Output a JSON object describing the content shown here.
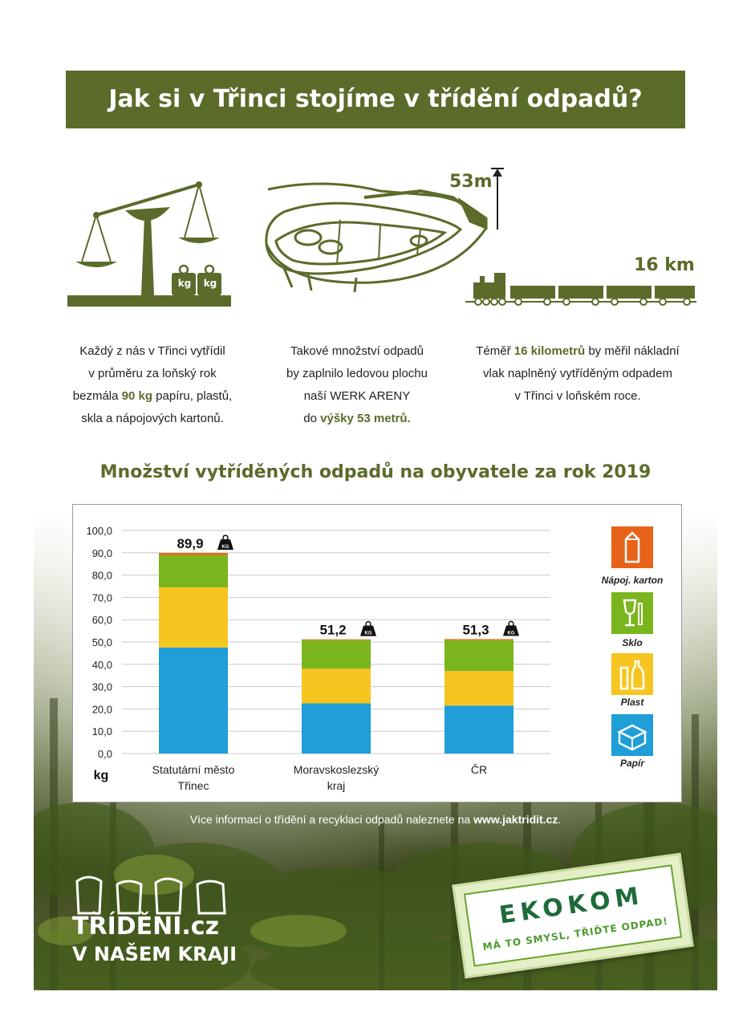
{
  "header": {
    "title": "Jak si v Třinci stojíme v třídění odpadů?"
  },
  "facts": {
    "height_label": "53m",
    "distance_label": "16 km",
    "scale": {
      "kg_badge": "kg",
      "lines": [
        "Každý z nás v Třinci vytřídil",
        "v průměru za loňský rok"
      ],
      "line3_pre": "bezmála ",
      "line3_bold": "90 kg",
      "line3_post": " papíru, plastů,",
      "line4": "skla a nápojových kartonů."
    },
    "arena": {
      "lines": [
        "Takové množství odpadů",
        "by zaplnilo ledovou plochu",
        "naší WERK ARENY"
      ],
      "line4_pre": "do ",
      "line4_bold": "výšky 53 metrů."
    },
    "train": {
      "line1_pre": "Téměř ",
      "line1_bold": "16 kilometrů",
      "line1_post": " by měřil nákladní",
      "lines": [
        "vlak naplněný vytříděným odpadem",
        "v Třinci v loňském roce."
      ]
    }
  },
  "chart_title": "Množství vytříděných odpadů na obyvatele za rok 2019",
  "chart_data": {
    "type": "bar",
    "stacked": true,
    "categories": [
      "Statutární město Třinec",
      "Moravskoslezský kraj",
      "ČR"
    ],
    "category_lines": [
      [
        "Statutární město",
        "Třinec"
      ],
      [
        "Moravskoslezský",
        "kraj"
      ],
      [
        "ČR"
      ]
    ],
    "series": [
      {
        "name": "Papír",
        "color": "#1f9ed8",
        "values": [
          47.5,
          22.5,
          21.5
        ]
      },
      {
        "name": "Plast",
        "color": "#f6c520",
        "values": [
          27.0,
          15.5,
          15.5
        ]
      },
      {
        "name": "Sklo",
        "color": "#7ab51d",
        "values": [
          14.5,
          12.8,
          13.8
        ]
      },
      {
        "name": "Nápoj. karton",
        "color": "#e8631a",
        "values": [
          0.9,
          0.4,
          0.5
        ]
      }
    ],
    "totals": [
      89.9,
      51.2,
      51.3
    ],
    "total_labels": [
      "89,9",
      "51,2",
      "51,3"
    ],
    "weight_badge": "KG",
    "ylim": [
      0,
      100
    ],
    "yticks": [
      "0,0",
      "10,0",
      "20,0",
      "30,0",
      "40,0",
      "50,0",
      "60,0",
      "70,0",
      "80,0",
      "90,0",
      "100,0"
    ],
    "ylabel": "kg",
    "grid": true,
    "legend_position": "right"
  },
  "footer": {
    "info_pre": "Více informací o třídění a recyklaci odpadů naleznete na ",
    "info_link": "www.jaktridit.cz",
    "info_post": ".",
    "brand_line1": "TŘÍDĚNÍ.cz",
    "brand_line2": "V NAŠEM KRAJI",
    "ekokom_name": "EKOKOM",
    "ekokom_slogan": "MÁ TO SMYSL, TŘIĎTE ODPAD!"
  },
  "colors": {
    "olive": "#5b6b2a",
    "papir": "#1f9ed8",
    "plast": "#f6c520",
    "sklo": "#7ab51d",
    "karton": "#e8631a"
  }
}
